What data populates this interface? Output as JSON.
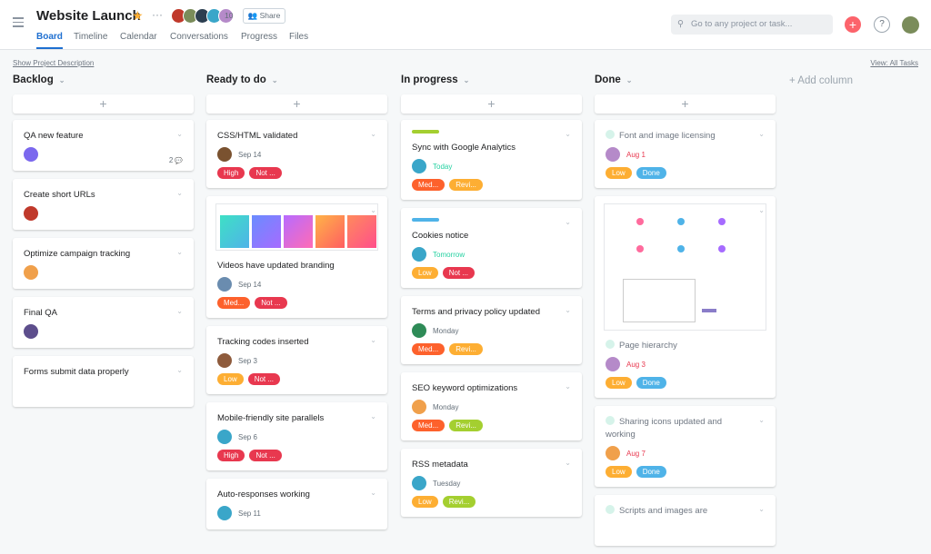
{
  "header": {
    "title": "Website Launch",
    "members": "10",
    "share": "Share",
    "tabs": [
      "Board",
      "Timeline",
      "Calendar",
      "Conversations",
      "Progress",
      "Files"
    ],
    "active_tab": 0,
    "search": "Go to any project or task...",
    "help": "?"
  },
  "toolbar": {
    "description": "Show Project Description",
    "view": "View: All Tasks"
  },
  "add_column": "+ Add column",
  "columns": [
    {
      "name": "Backlog",
      "cards": [
        {
          "title": "QA new feature",
          "avatar": "#7b68ee",
          "comments": "2"
        },
        {
          "title": "Create short URLs",
          "avatar": "#c0392b"
        },
        {
          "title": "Optimize campaign tracking",
          "avatar": "#f0a04b"
        },
        {
          "title": "Final QA",
          "avatar": "#5d4e8c"
        },
        {
          "title": "Forms submit data properly"
        }
      ]
    },
    {
      "name": "Ready to do",
      "cards": [
        {
          "title": "CSS/HTML validated",
          "avatar": "#7a5230",
          "date": "Sep 14",
          "tags": [
            {
              "text": "High",
              "color": "#e8384f"
            },
            {
              "text": "Not ...",
              "color": "#e8384f"
            }
          ]
        },
        {
          "image": "swatches",
          "title": "Videos have updated branding",
          "avatar": "#6a8caf",
          "date": "Sep 14",
          "tags": [
            {
              "text": "Med...",
              "color": "#fd612c"
            },
            {
              "text": "Not ...",
              "color": "#e8384f"
            }
          ]
        },
        {
          "title": "Tracking codes inserted",
          "avatar": "#8e5b3c",
          "date": "Sep 3",
          "tags": [
            {
              "text": "Low",
              "color": "#fdae33"
            },
            {
              "text": "Not ...",
              "color": "#e8384f"
            }
          ]
        },
        {
          "title": "Mobile-friendly site parallels",
          "avatar": "#3aa6c9",
          "date": "Sep 6",
          "tags": [
            {
              "text": "High",
              "color": "#e8384f"
            },
            {
              "text": "Not ...",
              "color": "#e8384f"
            }
          ]
        },
        {
          "title": "Auto-responses working",
          "avatar": "#3aa6c9",
          "date": "Sep 11"
        }
      ]
    },
    {
      "name": "In progress",
      "cards": [
        {
          "bar_color": "#a4cf30",
          "title": "Sync with Google Analytics",
          "avatar": "#3aa6c9",
          "date": "Today",
          "date_color": "#25d1a1",
          "tags": [
            {
              "text": "Med...",
              "color": "#fd612c"
            },
            {
              "text": "Revi...",
              "color": "#fdae33"
            }
          ]
        },
        {
          "bar_color": "#4fb3e8",
          "title": "Cookies notice",
          "avatar": "#3aa6c9",
          "date": "Tomorrow",
          "date_color": "#25d1a1",
          "tags": [
            {
              "text": "Low",
              "color": "#fdae33"
            },
            {
              "text": "Not ...",
              "color": "#e8384f"
            }
          ]
        },
        {
          "title": "Terms and privacy policy updated",
          "avatar": "#2e8b57",
          "date": "Monday",
          "tags": [
            {
              "text": "Med...",
              "color": "#fd612c"
            },
            {
              "text": "Revi...",
              "color": "#fdae33"
            }
          ]
        },
        {
          "title": "SEO keyword optimizations",
          "avatar": "#f0a04b",
          "date": "Monday",
          "tags": [
            {
              "text": "Med...",
              "color": "#fd612c"
            },
            {
              "text": "Revi...",
              "color": "#a4cf30"
            }
          ]
        },
        {
          "title": "RSS metadata",
          "avatar": "#3aa6c9",
          "date": "Tuesday",
          "tags": [
            {
              "text": "Low",
              "color": "#fdae33"
            },
            {
              "text": "Revi...",
              "color": "#a4cf30"
            }
          ]
        }
      ]
    },
    {
      "name": "Done",
      "cards": [
        {
          "done": true,
          "title": "Font and image licensing",
          "avatar": "#b58ac9",
          "date": "Aug 1",
          "date_color": "#e8384f",
          "tags": [
            {
              "text": "Low",
              "color": "#fdae33"
            },
            {
              "text": "Done",
              "color": "#4fb3e8"
            }
          ]
        },
        {
          "image": "wireframe",
          "done": true,
          "title": "Page hierarchy",
          "avatar": "#b58ac9",
          "date": "Aug 3",
          "date_color": "#e8384f",
          "tags": [
            {
              "text": "Low",
              "color": "#fdae33"
            },
            {
              "text": "Done",
              "color": "#4fb3e8"
            }
          ]
        },
        {
          "done": true,
          "title": "Sharing icons updated and working",
          "avatar": "#f0a04b",
          "date": "Aug 7",
          "date_color": "#e8384f",
          "tags": [
            {
              "text": "Low",
              "color": "#fdae33"
            },
            {
              "text": "Done",
              "color": "#4fb3e8"
            }
          ]
        },
        {
          "done": true,
          "title": "Scripts and images are"
        }
      ]
    }
  ]
}
